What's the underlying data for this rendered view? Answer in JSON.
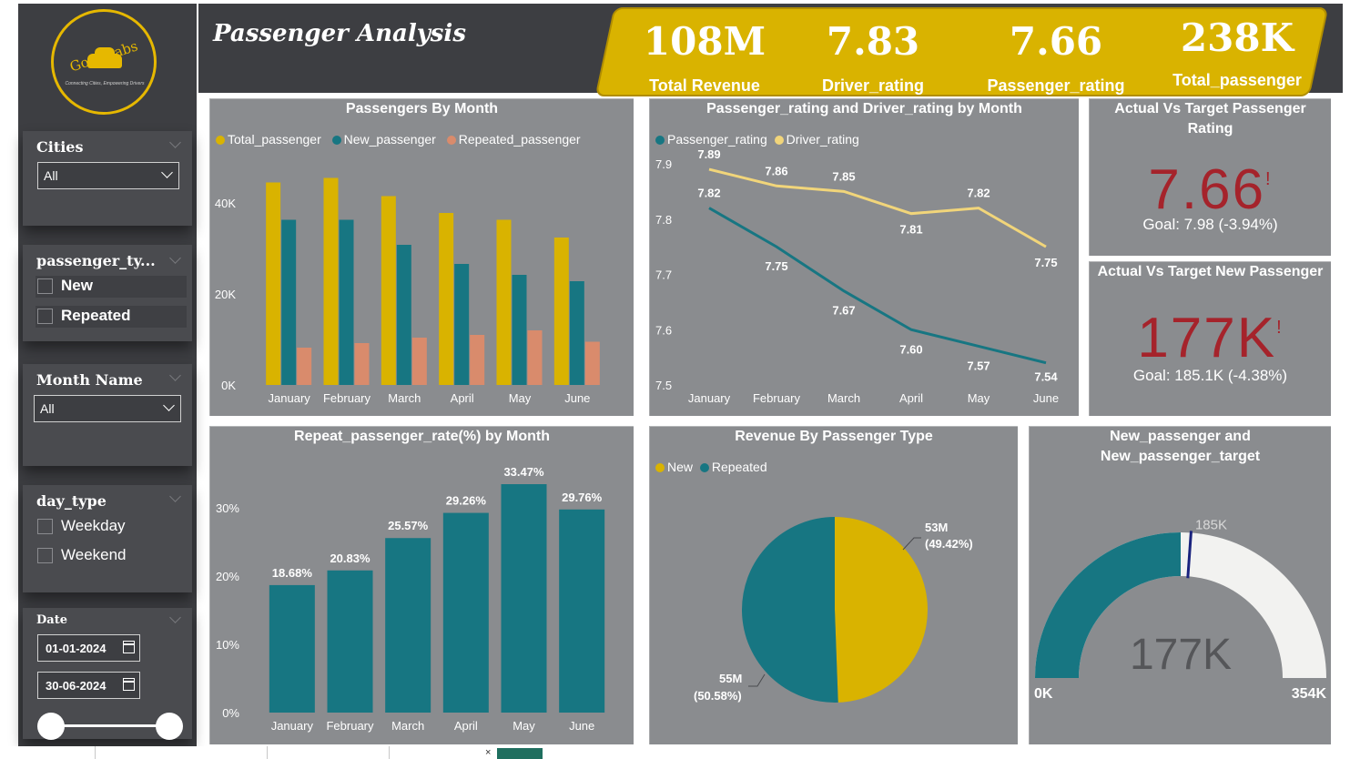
{
  "logo": {
    "name": "GoodCabs",
    "tagline": "Connecting Cities, Empowering Drivers"
  },
  "page_title": "Passenger Analysis",
  "kpis": [
    {
      "value": "108M",
      "label": "Total Revenue"
    },
    {
      "value": "7.83",
      "label": "Driver_rating"
    },
    {
      "value": "7.66",
      "label": "Passenger_rating"
    },
    {
      "value": "238K",
      "label": "Total_passenger"
    }
  ],
  "filters": {
    "cities": {
      "title": "Cities",
      "selected": "All"
    },
    "passenger_type": {
      "title": "passenger_ty...",
      "options": [
        "New",
        "Repeated"
      ]
    },
    "month_name": {
      "title": "Month Name",
      "selected": "All"
    },
    "day_type": {
      "title": "day_type",
      "options": [
        "Weekday",
        "Weekend"
      ]
    },
    "date": {
      "title": "Date",
      "start": "01-01-2024",
      "end": "30-06-2024"
    }
  },
  "cards": {
    "rating": {
      "title": "Actual Vs Target Passenger Rating",
      "value": "7.66",
      "alert": "!",
      "goal": "Goal: 7.98 (-3.94%)"
    },
    "new_passenger": {
      "title": "Actual Vs Target New Passenger",
      "value": "177K",
      "alert": "!",
      "goal": "Goal: 185.1K (-4.38%)"
    }
  },
  "colors": {
    "gold": "#d9b300",
    "teal": "#177682",
    "salmon": "#d98b6c",
    "pale_gold": "#f1d57a",
    "panel": "#8a8c8f",
    "alert_red": "#a5232b",
    "gauge_empty": "#f2f2f0",
    "target_line": "#1a237e"
  },
  "chart_data": [
    {
      "id": "passengers_by_month",
      "type": "bar",
      "title": "Passengers By Month",
      "categories": [
        "January",
        "February",
        "March",
        "April",
        "May",
        "June"
      ],
      "series": [
        {
          "name": "Total_passenger",
          "values": [
            44500,
            45500,
            41500,
            37800,
            36300,
            32400
          ]
        },
        {
          "name": "New_passenger",
          "values": [
            36300,
            36300,
            30800,
            26600,
            24200,
            22800
          ]
        },
        {
          "name": "Repeated_passenger",
          "values": [
            8200,
            9200,
            10400,
            11000,
            12000,
            9500
          ]
        }
      ],
      "yticks": [
        0,
        20000,
        40000
      ],
      "ytick_labels": [
        "0K",
        "20K",
        "40K"
      ],
      "ylim": [
        0,
        50000
      ]
    },
    {
      "id": "rating_by_month",
      "type": "line",
      "title": "Passenger_rating and Driver_rating by Month",
      "categories": [
        "January",
        "February",
        "March",
        "April",
        "May",
        "June"
      ],
      "series": [
        {
          "name": "Passenger_rating",
          "values": [
            7.82,
            7.75,
            7.67,
            7.6,
            7.57,
            7.54
          ],
          "labels": [
            "7.82",
            "7.75",
            "7.67",
            "7.60",
            "7.57",
            "7.54"
          ]
        },
        {
          "name": "Driver_rating",
          "values": [
            7.89,
            7.86,
            7.85,
            7.81,
            7.82,
            7.75
          ],
          "labels": [
            "7.89",
            "7.86",
            "7.85",
            "7.81",
            "7.82",
            "7.75"
          ]
        }
      ],
      "yticks": [
        7.5,
        7.6,
        7.7,
        7.8,
        7.9
      ],
      "ytick_labels": [
        "7.5",
        "7.6",
        "7.7",
        "7.8",
        "7.9"
      ],
      "ylim": [
        7.5,
        7.9
      ]
    },
    {
      "id": "repeat_rate_by_month",
      "type": "bar",
      "title": "Repeat_passenger_rate(%) by Month",
      "categories": [
        "January",
        "February",
        "March",
        "April",
        "May",
        "June"
      ],
      "values": [
        18.68,
        20.83,
        25.57,
        29.26,
        33.47,
        29.76
      ],
      "value_labels": [
        "18.68%",
        "20.83%",
        "25.57%",
        "29.26%",
        "33.47%",
        "29.76%"
      ],
      "yticks": [
        0,
        10,
        20,
        30
      ],
      "ytick_labels": [
        "0%",
        "10%",
        "20%",
        "30%"
      ],
      "ylim": [
        0,
        33.47
      ]
    },
    {
      "id": "revenue_by_type",
      "type": "pie",
      "title": "Revenue By Passenger Type",
      "slices": [
        {
          "name": "New",
          "value": 49.42,
          "label": "53M",
          "pct_label": "(49.42%)"
        },
        {
          "name": "Repeated",
          "value": 50.58,
          "label": "55M",
          "pct_label": "(50.58%)"
        }
      ]
    },
    {
      "id": "new_passenger_gauge",
      "type": "gauge",
      "title": "New_passenger and New_passenger_target",
      "value": 177,
      "target": 185,
      "min": 0,
      "max": 354,
      "value_label": "177K",
      "target_label": "185K",
      "min_label": "0K",
      "max_label": "354K"
    }
  ]
}
